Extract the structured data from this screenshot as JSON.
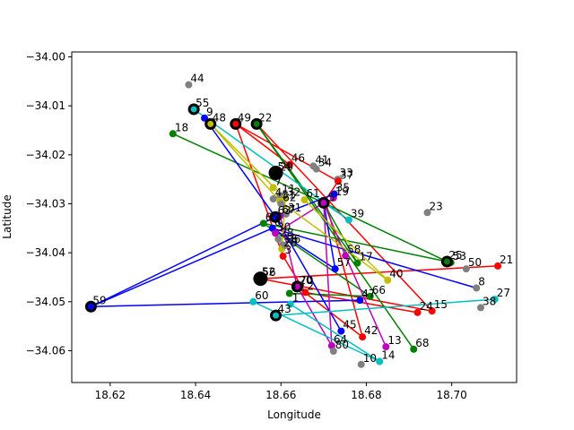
{
  "chart_data": {
    "type": "scatter",
    "title": "",
    "xlabel": "Longitude",
    "ylabel": "Latitude",
    "xlim": [
      18.611,
      18.7152
    ],
    "ylim": [
      -34.0665,
      -33.999
    ],
    "xticks": [
      "18.62",
      "18.64",
      "18.66",
      "18.68",
      "18.70"
    ],
    "yticks": [
      "−34.00",
      "−34.01",
      "−34.02",
      "−34.03",
      "−34.04",
      "−34.05",
      "−34.06"
    ],
    "xtick_values": [
      18.62,
      18.64,
      18.66,
      18.68,
      18.7
    ],
    "ytick_values": [
      -34.0,
      -34.01,
      -34.02,
      -34.03,
      -34.04,
      -34.05,
      -34.06
    ],
    "grid": false,
    "points": [
      {
        "id": "1",
        "x": 18.6622,
        "y": -34.0505,
        "color": "#00bfbf"
      },
      {
        "id": "2",
        "x": 18.6657,
        "y": -34.0481,
        "color": "#ff0000"
      },
      {
        "id": "3",
        "x": 18.6605,
        "y": -34.0407,
        "color": "#ff0000"
      },
      {
        "id": "4",
        "x": 18.6582,
        "y": -34.029,
        "color": "#808080"
      },
      {
        "id": "5",
        "x": 18.6706,
        "y": -34.03,
        "color": "#ff0000"
      },
      {
        "id": "6",
        "x": 18.658,
        "y": -34.035,
        "color": "#0000ff"
      },
      {
        "id": "7",
        "x": 18.6582,
        "y": -34.0267,
        "color": "#bfbf00"
      },
      {
        "id": "8",
        "x": 18.7058,
        "y": -34.0472,
        "color": "#808080"
      },
      {
        "id": "9",
        "x": 18.6421,
        "y": -34.0125,
        "color": "#0000ff"
      },
      {
        "id": "10",
        "x": 18.6788,
        "y": -34.0628,
        "color": "#808080"
      },
      {
        "id": "11",
        "x": 18.6598,
        "y": -34.0283,
        "color": "#808080"
      },
      {
        "id": "12",
        "x": 18.662,
        "y": -34.0483,
        "color": "#008000"
      },
      {
        "id": "13",
        "x": 18.6846,
        "y": -34.0592,
        "color": "#bf00bf"
      },
      {
        "id": "14",
        "x": 18.6831,
        "y": -34.0622,
        "color": "#00bfbf"
      },
      {
        "id": "15",
        "x": 18.6954,
        "y": -34.0519,
        "color": "#ff0000"
      },
      {
        "id": "16",
        "x": 18.6604,
        "y": -34.0384,
        "color": "#808080"
      },
      {
        "id": "17",
        "x": 18.6779,
        "y": -34.0421,
        "color": "#008000"
      },
      {
        "id": "18",
        "x": 18.6347,
        "y": -34.0157,
        "color": "#008000"
      },
      {
        "id": "19",
        "x": 18.6723,
        "y": -34.0288,
        "color": "#bf00bf"
      },
      {
        "id": "20",
        "x": 18.6638,
        "y": -34.0469,
        "color": "#bf00bf"
      },
      {
        "id": "21",
        "x": 18.7108,
        "y": -34.0427,
        "color": "#ff0000"
      },
      {
        "id": "22",
        "x": 18.6543,
        "y": -34.0137,
        "color": "#008000"
      },
      {
        "id": "23",
        "x": 18.6943,
        "y": -34.0318,
        "color": "#808080"
      },
      {
        "id": "24",
        "x": 18.692,
        "y": -34.0522,
        "color": "#ff0000"
      },
      {
        "id": "25",
        "x": 18.6989,
        "y": -34.0418,
        "color": "#008000"
      },
      {
        "id": "26",
        "x": 18.6602,
        "y": -34.0392,
        "color": "#bfbf00"
      },
      {
        "id": "27",
        "x": 18.7101,
        "y": -34.0495,
        "color": "#00bfbf"
      },
      {
        "id": "28",
        "x": 18.6594,
        "y": -34.0372,
        "color": "#808080"
      },
      {
        "id": "29",
        "x": 18.6593,
        "y": -34.0238,
        "color": "#808080"
      },
      {
        "id": "30",
        "x": 18.6587,
        "y": -34.036,
        "color": "#bf00bf"
      },
      {
        "id": "31",
        "x": 18.6612,
        "y": -34.0321,
        "color": "#808080"
      },
      {
        "id": "32",
        "x": 18.661,
        "y": -34.0289,
        "color": "#bfbf00"
      },
      {
        "id": "33",
        "x": 18.6733,
        "y": -34.025,
        "color": "#808080"
      },
      {
        "id": "34",
        "x": 18.6683,
        "y": -34.0229,
        "color": "#808080"
      },
      {
        "id": "35",
        "x": 18.6725,
        "y": -34.028,
        "color": "#0000ff"
      },
      {
        "id": "36",
        "x": 18.661,
        "y": -34.0385,
        "color": "#808080"
      },
      {
        "id": "37",
        "x": 18.6734,
        "y": -34.0254,
        "color": "#ff0000"
      },
      {
        "id": "38",
        "x": 18.7068,
        "y": -34.0512,
        "color": "#808080"
      },
      {
        "id": "39",
        "x": 18.6759,
        "y": -34.0333,
        "color": "#00bfbf"
      },
      {
        "id": "40",
        "x": 18.685,
        "y": -34.0456,
        "color": "#bfbf00"
      },
      {
        "id": "41",
        "x": 18.6676,
        "y": -34.0223,
        "color": "#808080"
      },
      {
        "id": "42",
        "x": 18.6791,
        "y": -34.0572,
        "color": "#ff0000"
      },
      {
        "id": "43",
        "x": 18.6588,
        "y": -34.0528,
        "color": "#00bfbf"
      },
      {
        "id": "44",
        "x": 18.6384,
        "y": -34.0057,
        "color": "#808080"
      },
      {
        "id": "45",
        "x": 18.6741,
        "y": -34.056,
        "color": "#0000ff"
      },
      {
        "id": "46",
        "x": 18.662,
        "y": -34.022,
        "color": "#ff0000"
      },
      {
        "id": "47",
        "x": 18.6785,
        "y": -34.0497,
        "color": "#0000ff"
      },
      {
        "id": "48",
        "x": 18.6435,
        "y": -34.0137,
        "color": "#bfbf00"
      },
      {
        "id": "49",
        "x": 18.6494,
        "y": -34.0137,
        "color": "#ff0000"
      },
      {
        "id": "50",
        "x": 18.7034,
        "y": -34.0433,
        "color": "#808080"
      },
      {
        "id": "51",
        "x": 18.6598,
        "y": -34.0295,
        "color": "#bfbf00"
      },
      {
        "id": "52",
        "x": 18.6551,
        "y": -34.0452,
        "color": "#000000"
      },
      {
        "id": "53",
        "x": 18.6998,
        "y": -34.042,
        "color": "#008000"
      },
      {
        "id": "54",
        "x": 18.6588,
        "y": -34.0237,
        "color": "#000000"
      },
      {
        "id": "55",
        "x": 18.6396,
        "y": -34.0107,
        "color": "#00bfbf"
      },
      {
        "id": "56",
        "x": 18.6552,
        "y": -34.0453,
        "color": "#000000"
      },
      {
        "id": "57",
        "x": 18.6727,
        "y": -34.0433,
        "color": "#0000ff"
      },
      {
        "id": "58",
        "x": 18.6751,
        "y": -34.0406,
        "color": "#bf00bf"
      },
      {
        "id": "59",
        "x": 18.6155,
        "y": -34.051,
        "color": "#0000ff"
      },
      {
        "id": "60",
        "x": 18.6535,
        "y": -34.05,
        "color": "#00bfbf"
      },
      {
        "id": "61",
        "x": 18.6655,
        "y": -34.0292,
        "color": "#bfbf00"
      },
      {
        "id": "62",
        "x": 18.66,
        "y": -34.03,
        "color": "#808080"
      },
      {
        "id": "63",
        "x": 18.6588,
        "y": -34.0327,
        "color": "#0000ff"
      },
      {
        "id": "64",
        "x": 18.6719,
        "y": -34.059,
        "color": "#bf00bf"
      },
      {
        "id": "65",
        "x": 18.6559,
        "y": -34.034,
        "color": "#008000"
      },
      {
        "id": "66",
        "x": 18.6809,
        "y": -34.0489,
        "color": "#008000"
      },
      {
        "id": "67",
        "x": 18.6598,
        "y": -34.0325,
        "color": "#bf00bf"
      },
      {
        "id": "68",
        "x": 18.6911,
        "y": -34.0597,
        "color": "#008000"
      },
      {
        "id": "70",
        "x": 18.664,
        "y": -34.0469,
        "color": "#808080"
      },
      {
        "id": "80",
        "x": 18.6723,
        "y": -34.0601,
        "color": "#808080"
      }
    ],
    "hubs": [
      {
        "x": 18.6396,
        "y": -34.0107,
        "color": "#00bfbf",
        "size": "medium"
      },
      {
        "x": 18.6435,
        "y": -34.0137,
        "color": "#bfbf00",
        "size": "medium"
      },
      {
        "x": 18.6494,
        "y": -34.0137,
        "color": "#ff0000",
        "size": "medium"
      },
      {
        "x": 18.6543,
        "y": -34.0137,
        "color": "#008000",
        "size": "medium"
      },
      {
        "x": 18.6588,
        "y": -34.0237,
        "color": "#000000",
        "size": "large"
      },
      {
        "x": 18.6587,
        "y": -34.0327,
        "color": "#0000ff",
        "size": "medium"
      },
      {
        "x": 18.67,
        "y": -34.0298,
        "color": "#bf00bf",
        "size": "medium"
      },
      {
        "x": 18.6989,
        "y": -34.0418,
        "color": "#008000",
        "size": "medium"
      },
      {
        "x": 18.6552,
        "y": -34.0453,
        "color": "#000000",
        "size": "large"
      },
      {
        "x": 18.6638,
        "y": -34.0469,
        "color": "#bf00bf",
        "size": "medium"
      },
      {
        "x": 18.6588,
        "y": -34.0528,
        "color": "#00bfbf",
        "size": "medium"
      },
      {
        "x": 18.6155,
        "y": -34.051,
        "color": "#0000ff",
        "size": "medium"
      }
    ],
    "routes": [
      {
        "color": "#ff0000",
        "path": [
          [
            18.6494,
            -34.0137
          ],
          [
            18.662,
            -34.022
          ],
          [
            18.6588,
            -34.0237
          ]
        ]
      },
      {
        "color": "#ff0000",
        "path": [
          [
            18.6494,
            -34.0137
          ],
          [
            18.6734,
            -34.0254
          ],
          [
            18.67,
            -34.0298
          ]
        ]
      },
      {
        "color": "#ff0000",
        "path": [
          [
            18.6494,
            -34.0137
          ],
          [
            18.6605,
            -34.0407
          ],
          [
            18.6657,
            -34.0481
          ],
          [
            18.692,
            -34.0522
          ]
        ]
      },
      {
        "color": "#ff0000",
        "path": [
          [
            18.6552,
            -34.0453
          ],
          [
            18.7108,
            -34.0427
          ]
        ]
      },
      {
        "color": "#ff0000",
        "path": [
          [
            18.6552,
            -34.0453
          ],
          [
            18.6954,
            -34.0519
          ],
          [
            18.6543,
            -34.0137
          ]
        ]
      },
      {
        "color": "#ff0000",
        "path": [
          [
            18.6638,
            -34.0469
          ],
          [
            18.6791,
            -34.0572
          ],
          [
            18.6706,
            -34.03
          ]
        ]
      },
      {
        "color": "#008000",
        "path": [
          [
            18.6347,
            -34.0157
          ],
          [
            18.67,
            -34.0298
          ],
          [
            18.6989,
            -34.0418
          ]
        ]
      },
      {
        "color": "#008000",
        "path": [
          [
            18.6543,
            -34.0137
          ],
          [
            18.6779,
            -34.0421
          ],
          [
            18.67,
            -34.0298
          ]
        ]
      },
      {
        "color": "#008000",
        "path": [
          [
            18.6543,
            -34.0137
          ],
          [
            18.6911,
            -34.0597
          ]
        ]
      },
      {
        "color": "#008000",
        "path": [
          [
            18.6559,
            -34.034
          ],
          [
            18.6989,
            -34.0418
          ]
        ]
      },
      {
        "color": "#008000",
        "path": [
          [
            18.6559,
            -34.034
          ],
          [
            18.6809,
            -34.0489
          ],
          [
            18.662,
            -34.0483
          ]
        ]
      },
      {
        "color": "#0000ff",
        "path": [
          [
            18.6421,
            -34.0125
          ],
          [
            18.6587,
            -34.0327
          ],
          [
            18.6725,
            -34.028
          ]
        ]
      },
      {
        "color": "#0000ff",
        "path": [
          [
            18.6155,
            -34.051
          ],
          [
            18.6587,
            -34.0327
          ],
          [
            18.6741,
            -34.056
          ]
        ]
      },
      {
        "color": "#0000ff",
        "path": [
          [
            18.6155,
            -34.051
          ],
          [
            18.6785,
            -34.0497
          ]
        ]
      },
      {
        "color": "#0000ff",
        "path": [
          [
            18.6155,
            -34.051
          ],
          [
            18.658,
            -34.035
          ],
          [
            18.7058,
            -34.0472
          ]
        ]
      },
      {
        "color": "#0000ff",
        "path": [
          [
            18.658,
            -34.035
          ],
          [
            18.6727,
            -34.0433
          ],
          [
            18.67,
            -34.0298
          ]
        ]
      },
      {
        "color": "#bf00bf",
        "path": [
          [
            18.6587,
            -34.036
          ],
          [
            18.67,
            -34.0298
          ],
          [
            18.6751,
            -34.0406
          ],
          [
            18.6846,
            -34.0592
          ]
        ]
      },
      {
        "color": "#bf00bf",
        "path": [
          [
            18.6638,
            -34.0469
          ],
          [
            18.6719,
            -34.059
          ],
          [
            18.67,
            -34.0298
          ]
        ]
      },
      {
        "color": "#bf00bf",
        "path": [
          [
            18.6598,
            -34.0325
          ],
          [
            18.6638,
            -34.0469
          ]
        ]
      },
      {
        "color": "#bfbf00",
        "path": [
          [
            18.6435,
            -34.0137
          ],
          [
            18.6598,
            -34.0295
          ],
          [
            18.685,
            -34.0456
          ],
          [
            18.6655,
            -34.0292
          ]
        ]
      },
      {
        "color": "#bfbf00",
        "path": [
          [
            18.6435,
            -34.0137
          ],
          [
            18.661,
            -34.0289
          ],
          [
            18.6602,
            -34.0392
          ]
        ]
      },
      {
        "color": "#00bfbf",
        "path": [
          [
            18.6396,
            -34.0107
          ],
          [
            18.6759,
            -34.0333
          ],
          [
            18.67,
            -34.0298
          ]
        ]
      },
      {
        "color": "#00bfbf",
        "path": [
          [
            18.6588,
            -34.0528
          ],
          [
            18.7101,
            -34.0495
          ]
        ]
      },
      {
        "color": "#00bfbf",
        "path": [
          [
            18.6535,
            -34.05
          ],
          [
            18.6831,
            -34.0622
          ],
          [
            18.6622,
            -34.0505
          ]
        ]
      }
    ]
  }
}
